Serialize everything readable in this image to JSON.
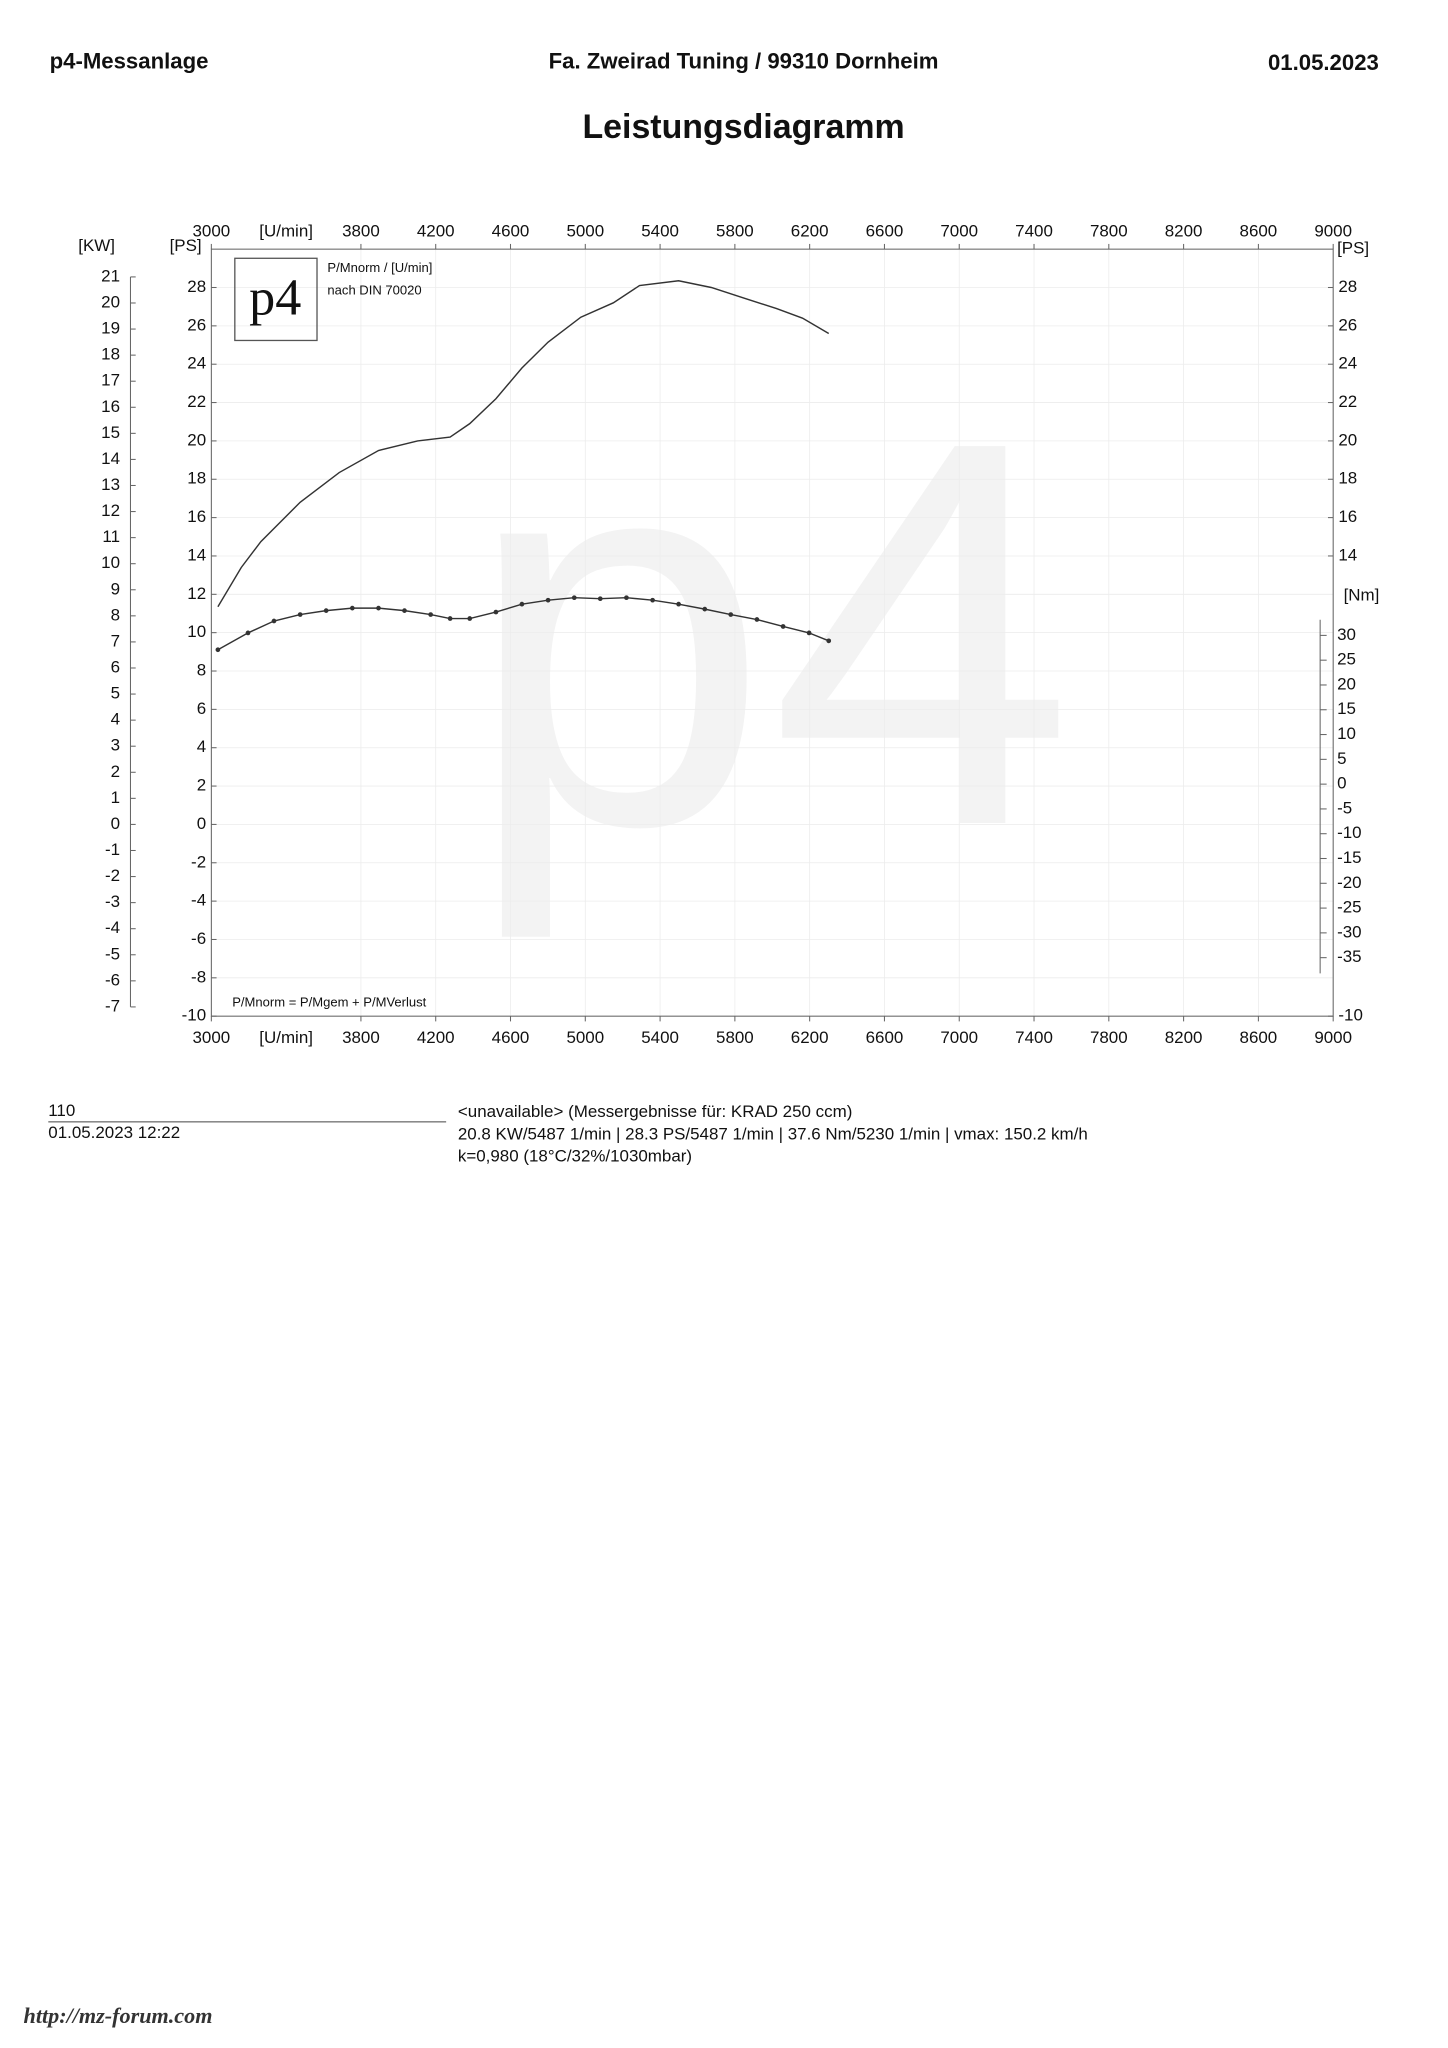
{
  "header": {
    "left": "p4-Messanlage",
    "center": "Fa. Zweirad Tuning / 99310 Dornheim",
    "right": "01.05.2023"
  },
  "chart_data": {
    "type": "line",
    "title": "Leistungsdiagramm",
    "logo_text": "p4",
    "watermark": "p4",
    "note_1": "P/Mnorm / [U/min]",
    "note_2": "nach DIN 70020",
    "formula": "P/Mnorm = P/Mgem + P/MVerlust",
    "x_label": "[U/min]",
    "xlim": [
      3000,
      9000
    ],
    "xticks": [
      3000,
      3800,
      4200,
      4600,
      5000,
      5400,
      5800,
      6200,
      6600,
      7000,
      7400,
      7800,
      8200,
      8600,
      9000
    ],
    "y_label": "[PS]",
    "ylim": [
      -10,
      30
    ],
    "yticks": [
      -10,
      -8,
      -6,
      -4,
      -2,
      0,
      2,
      4,
      6,
      8,
      10,
      12,
      14,
      16,
      18,
      20,
      22,
      24,
      26,
      28
    ],
    "y_right_label": "[PS]",
    "y_right_ticks": [
      -10,
      14,
      16,
      18,
      20,
      22,
      24,
      26,
      28
    ],
    "kw_label": "[KW]",
    "kw_lim": [
      -7.355,
      22.065
    ],
    "kw_ticks": [
      -7,
      -6,
      -5,
      -4,
      -3,
      -2,
      -1,
      0,
      1,
      2,
      3,
      4,
      5,
      6,
      7,
      8,
      9,
      10,
      11,
      12,
      13,
      14,
      15,
      16,
      17,
      18,
      19,
      20,
      21
    ],
    "nm_label": "[Nm]",
    "nm_lim": [
      -46.8,
      107.9
    ],
    "nm_ticks": [
      -35,
      -30,
      -25,
      -20,
      -15,
      -10,
      -5,
      0,
      5,
      10,
      15,
      20,
      25,
      30
    ],
    "grid": true,
    "series": [
      {
        "axis": "y",
        "color": "#333333",
        "markers": false,
        "x": [
          3035,
          3160,
          3265,
          3475,
          3684,
          3894,
          4103,
          4277,
          4382,
          4522,
          4661,
          4801,
          4976,
          5150,
          5290,
          5499,
          5674,
          5848,
          6023,
          6162,
          6302
        ],
        "values": [
          11.35,
          13.4,
          14.75,
          16.8,
          18.35,
          19.5,
          20.0,
          20.2,
          20.9,
          22.2,
          23.8,
          25.15,
          26.45,
          27.2,
          28.1,
          28.35,
          28.0,
          27.45,
          26.9,
          26.4,
          25.6
        ]
      },
      {
        "axis": "nm",
        "color": "#333333",
        "markers": true,
        "x": [
          3035,
          3196,
          3335,
          3475,
          3614,
          3754,
          3894,
          4033,
          4173,
          4277,
          4382,
          4522,
          4661,
          4801,
          4941,
          5080,
          5220,
          5360,
          5499,
          5639,
          5778,
          5918,
          6058,
          6197,
          6302
        ],
        "values": [
          27.1,
          30.5,
          32.9,
          34.2,
          35.0,
          35.5,
          35.5,
          35.0,
          34.2,
          33.4,
          33.4,
          34.7,
          36.3,
          37.1,
          37.6,
          37.4,
          37.6,
          37.1,
          36.3,
          35.3,
          34.2,
          33.2,
          31.8,
          30.5,
          28.9
        ]
      }
    ]
  },
  "footer": {
    "number": "110",
    "datetime": "01.05.2023  12:22",
    "line_1": "<unavailable> (Messergebnisse für: KRAD 250 ccm)",
    "line_2": "20.8 KW/5487 1/min  |  28.3 PS/5487 1/min  |  37.6 Nm/5230 1/min | vmax: 150.2 km/h",
    "line_3": "k=0,980 (18°C/32%/1030mbar)"
  },
  "source": "http://mz-forum.com"
}
